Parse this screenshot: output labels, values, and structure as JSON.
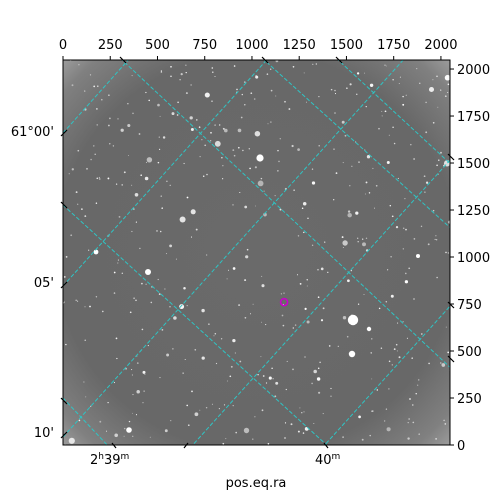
{
  "chart_data": {
    "type": "image",
    "title": "",
    "xlabel": "pos.eq.ra",
    "ylabel": "",
    "pixel_axes": {
      "x_ticks": [
        0,
        250,
        500,
        750,
        1000,
        1250,
        1500,
        1750,
        2000
      ],
      "x_tick_labels": [
        "0",
        "250",
        "500",
        "750",
        "1000",
        "1250",
        "1500",
        "1750",
        "2000"
      ],
      "xlim": [
        0,
        2048
      ],
      "y_ticks": [
        0,
        250,
        500,
        750,
        1000,
        1250,
        1500,
        1750,
        2000
      ],
      "y_tick_labels": [
        "0",
        "250",
        "500",
        "750",
        "1000",
        "1250",
        "1500",
        "1750",
        "2000"
      ],
      "ylim": [
        0,
        2048
      ]
    },
    "world_axes": {
      "ra_tick_labels": [
        {
          "hours": "2",
          "h": "h",
          "minutes": "39",
          "m": "m"
        },
        {
          "hours": "",
          "h": "",
          "minutes": "40",
          "m": "m"
        }
      ],
      "dec_tick_labels": [
        "61°00'",
        "05'",
        "10'"
      ]
    },
    "grid": true,
    "grid_color": "#2fc4c4",
    "image_colormap": "gray",
    "marker": {
      "shape": "circle",
      "color": "#cc00cc",
      "x": 1170,
      "y": 760
    }
  },
  "colors": {
    "background": "#ffffff",
    "image_mid": "#6e6e6e",
    "star": "#ffffff"
  }
}
